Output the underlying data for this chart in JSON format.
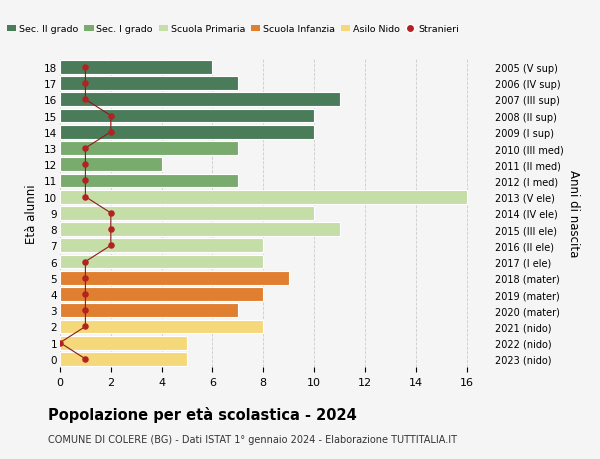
{
  "ages": [
    0,
    1,
    2,
    3,
    4,
    5,
    6,
    7,
    8,
    9,
    10,
    11,
    12,
    13,
    14,
    15,
    16,
    17,
    18
  ],
  "year_labels": [
    "2023 (nido)",
    "2022 (nido)",
    "2021 (nido)",
    "2020 (mater)",
    "2019 (mater)",
    "2018 (mater)",
    "2017 (I ele)",
    "2016 (II ele)",
    "2015 (III ele)",
    "2014 (IV ele)",
    "2013 (V ele)",
    "2012 (I med)",
    "2011 (II med)",
    "2010 (III med)",
    "2009 (I sup)",
    "2008 (II sup)",
    "2007 (III sup)",
    "2006 (IV sup)",
    "2005 (V sup)"
  ],
  "bar_values": [
    5,
    5,
    8,
    7,
    8,
    9,
    8,
    8,
    11,
    10,
    16,
    7,
    4,
    7,
    10,
    10,
    11,
    7,
    6
  ],
  "bar_colors": [
    "#f5d87a",
    "#f5d87a",
    "#f5d87a",
    "#e07f30",
    "#e07f30",
    "#e07f30",
    "#c5dea8",
    "#c5dea8",
    "#c5dea8",
    "#c5dea8",
    "#c5dea8",
    "#7aab6e",
    "#7aab6e",
    "#7aab6e",
    "#4a7c59",
    "#4a7c59",
    "#4a7c59",
    "#4a7c59",
    "#4a7c59"
  ],
  "stranieri_values": [
    1,
    0,
    1,
    1,
    1,
    1,
    1,
    2,
    2,
    2,
    1,
    1,
    1,
    1,
    2,
    2,
    1,
    1,
    1
  ],
  "categories": [
    "Sec. II grado",
    "Sec. I grado",
    "Scuola Primaria",
    "Scuola Infanzia",
    "Asilo Nido",
    "Stranieri"
  ],
  "legend_colors": [
    "#4a7c59",
    "#7aab6e",
    "#c5dea8",
    "#e07f30",
    "#f5d87a",
    "#b22222"
  ],
  "xlim": [
    0,
    17
  ],
  "xticks": [
    0,
    2,
    4,
    6,
    8,
    10,
    12,
    14,
    16
  ],
  "title": "Popolazione per età scolastica - 2024",
  "subtitle": "COMUNE DI COLERE (BG) - Dati ISTAT 1° gennaio 2024 - Elaborazione TUTTITALIA.IT",
  "ylabel_left": "Età alunni",
  "ylabel_right": "Anni di nascita",
  "background_color": "#f5f5f5",
  "grid_color": "#cccccc",
  "bar_edge_color": "white"
}
